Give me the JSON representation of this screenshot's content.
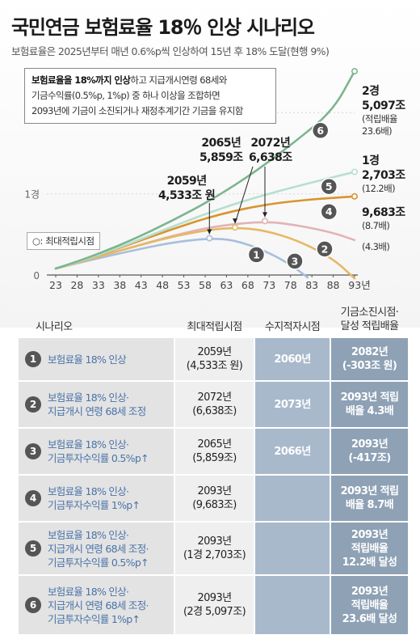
{
  "title": "국민연금 보험료율 18％ 인상 시나리오",
  "subtitle": "보험료율은 2025년부터 매년 0.6%p씩 인상하여 15년 후 18% 도달(현행 9%)",
  "note": {
    "bold": "보험료율을 18%까지 인상",
    "line1_rest": "하고 지급개시연령 68세와",
    "line2": "기금수익률(0.5%p, 1%p) 중 하나 이상을 조합하면",
    "line3": "2093년에 기금이 소진되거나 재정추계기간 기금을 유지함"
  },
  "legend": {
    "peak_marker": "○: 최대적립시점"
  },
  "annotations": {
    "a2065": {
      "year": "2065년",
      "value": "5,859조"
    },
    "a2072": {
      "year": "2072년",
      "value": "6,638조"
    },
    "a2059": {
      "year": "2059년",
      "value": "4,533조 원"
    },
    "s6": {
      "l1": "2경",
      "l2": "5,097조",
      "l3": "(적립배율",
      "l4": "23.6배)"
    },
    "s5": {
      "l1": "1경",
      "l2": "2,703조",
      "l3": "(12.2배)"
    },
    "s4": {
      "l1": "9,683조",
      "l2": "(8.7배)"
    },
    "s2": {
      "l1": "(4.3배)"
    }
  },
  "chart_data": {
    "type": "line",
    "x_tick_labels": [
      "23",
      "28",
      "33",
      "38",
      "43",
      "48",
      "53",
      "58",
      "63",
      "68",
      "73",
      "78",
      "83",
      "88",
      "93년"
    ],
    "y_tick_labels": [
      "0",
      "1경",
      "2경"
    ],
    "xlim": [
      2023,
      2093
    ],
    "ylim": [
      0,
      25000
    ],
    "unit": "조 원",
    "series": [
      {
        "name": "1",
        "color": "#a9bedc",
        "points": [
          [
            2023,
            800
          ],
          [
            2030,
            1700
          ],
          [
            2040,
            2900
          ],
          [
            2050,
            4000
          ],
          [
            2059,
            4533
          ],
          [
            2065,
            4300
          ],
          [
            2072,
            3000
          ],
          [
            2078,
            1300
          ],
          [
            2082,
            -303
          ]
        ],
        "peak": [
          2059,
          4533
        ]
      },
      {
        "name": "2",
        "color": "#e2b3b5",
        "points": [
          [
            2023,
            800
          ],
          [
            2030,
            1800
          ],
          [
            2040,
            3300
          ],
          [
            2050,
            4800
          ],
          [
            2060,
            6000
          ],
          [
            2072,
            6638
          ],
          [
            2080,
            6100
          ],
          [
            2088,
            5200
          ],
          [
            2093,
            4300
          ]
        ],
        "peak": [
          2072,
          6638
        ]
      },
      {
        "name": "3",
        "color": "#e6b863",
        "points": [
          [
            2023,
            800
          ],
          [
            2030,
            1800
          ],
          [
            2040,
            3300
          ],
          [
            2050,
            4700
          ],
          [
            2058,
            5500
          ],
          [
            2065,
            5859
          ],
          [
            2072,
            5500
          ],
          [
            2080,
            4200
          ],
          [
            2088,
            2000
          ],
          [
            2093,
            -417
          ]
        ],
        "peak": [
          2065,
          5859
        ]
      },
      {
        "name": "4",
        "color": "#d9942e",
        "points": [
          [
            2023,
            800
          ],
          [
            2030,
            1900
          ],
          [
            2040,
            3700
          ],
          [
            2050,
            5600
          ],
          [
            2060,
            7300
          ],
          [
            2070,
            8500
          ],
          [
            2080,
            9200
          ],
          [
            2093,
            9683
          ]
        ],
        "peak": [
          2093,
          9683
        ]
      },
      {
        "name": "5",
        "color": "#b7dfcd",
        "points": [
          [
            2023,
            800
          ],
          [
            2030,
            1900
          ],
          [
            2040,
            3800
          ],
          [
            2050,
            5900
          ],
          [
            2060,
            7900
          ],
          [
            2070,
            9600
          ],
          [
            2080,
            11000
          ],
          [
            2093,
            12703
          ]
        ],
        "peak": [
          2093,
          12703
        ]
      },
      {
        "name": "6",
        "color": "#7cb590",
        "points": [
          [
            2023,
            800
          ],
          [
            2030,
            2000
          ],
          [
            2040,
            4100
          ],
          [
            2050,
            6600
          ],
          [
            2060,
            9400
          ],
          [
            2070,
            12800
          ],
          [
            2080,
            16800
          ],
          [
            2088,
            20300
          ],
          [
            2093,
            25097
          ]
        ],
        "peak": [
          2093,
          25097
        ]
      }
    ]
  },
  "table": {
    "headers": {
      "scenario": "시나리오",
      "max": "최대적립시점",
      "balance": "수지적자시점",
      "exhaust_l1": "기금소진시점·",
      "exhaust_l2": "달성 적립배율"
    },
    "rows": [
      {
        "num": "1",
        "name": [
          "보험료율 18% 인상"
        ],
        "max": [
          "2059년",
          "(4,533조 원)"
        ],
        "balance": "2060년",
        "exhaust": [
          "2082년",
          "(-303조 원)"
        ]
      },
      {
        "num": "2",
        "name": [
          "보험료율 18% 인상·",
          "지급개시 연령 68세 조정"
        ],
        "max": [
          "2072년",
          "(6,638조)"
        ],
        "balance": "2073년",
        "exhaust": [
          "2093년 적립",
          "배율 4.3배"
        ]
      },
      {
        "num": "3",
        "name": [
          "보험료율 18% 인상·",
          "기금투자수익률 0.5%p↑"
        ],
        "max": [
          "2065년",
          "(5,859조)"
        ],
        "balance": "2066년",
        "exhaust": [
          "2093년",
          "(-417조)"
        ]
      },
      {
        "num": "4",
        "name": [
          "보험료율 18% 인상·",
          "기금투자수익률 1%p↑"
        ],
        "max": [
          "2093년",
          "(9,683조)"
        ],
        "balance": "",
        "exhaust": [
          "2093년 적립",
          "배율 8.7배"
        ]
      },
      {
        "num": "5",
        "name": [
          "보험료율 18% 인상·",
          "지급개시 연령 68세 조정·",
          "기금투자수익률 0.5%p↑"
        ],
        "max": [
          "2093년",
          "(1경 2,703조)"
        ],
        "balance": "",
        "exhaust": [
          "2093년",
          "적립배율",
          "12.2배 달성"
        ]
      },
      {
        "num": "6",
        "name": [
          "보험료율 18% 인상·",
          "지급개시 연령 68세 조정·",
          "기금투자수익률 1%p↑"
        ],
        "max": [
          "2093년",
          "(2경 5,097조)"
        ],
        "balance": "",
        "exhaust": [
          "2093년",
          "적립배율",
          "23.6배 달성"
        ]
      }
    ]
  }
}
